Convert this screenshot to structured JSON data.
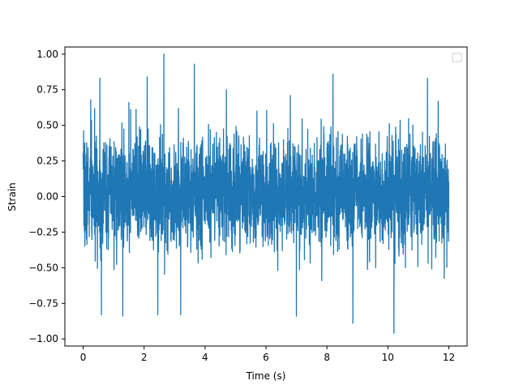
{
  "chart_data": {
    "type": "line",
    "title": "",
    "xlabel": "Time (s)",
    "ylabel": "Strain",
    "xlim": [
      -0.6,
      12.6
    ],
    "ylim": [
      -1.05,
      1.05
    ],
    "xticks": [
      0,
      2,
      4,
      6,
      8,
      10,
      12
    ],
    "xtick_labels": [
      "0",
      "2",
      "4",
      "6",
      "8",
      "10",
      "12"
    ],
    "yticks": [
      -1.0,
      -0.75,
      -0.5,
      -0.25,
      0.0,
      0.25,
      0.5,
      0.75,
      1.0
    ],
    "ytick_labels": [
      "−1.00",
      "−0.75",
      "−0.50",
      "−0.25",
      "0.00",
      "0.25",
      "0.50",
      "0.75",
      "1.00"
    ],
    "grid": false,
    "legend": {
      "placement": "top-right",
      "entries": []
    },
    "series": [
      {
        "x_range": [
          0,
          12
        ],
        "typical_range": [
          -0.45,
          0.5
        ],
        "peak_values": [
          {
            "x": 0.25,
            "y": 0.68
          },
          {
            "x": 0.55,
            "y": 0.83
          },
          {
            "x": 0.6,
            "y": -0.83
          },
          {
            "x": 1.3,
            "y": -0.84
          },
          {
            "x": 1.5,
            "y": 0.66
          },
          {
            "x": 2.1,
            "y": 0.84
          },
          {
            "x": 2.45,
            "y": -0.83
          },
          {
            "x": 2.65,
            "y": 1.0
          },
          {
            "x": 3.2,
            "y": -0.83
          },
          {
            "x": 3.65,
            "y": 0.93
          },
          {
            "x": 4.7,
            "y": 0.75
          },
          {
            "x": 5.7,
            "y": 0.6
          },
          {
            "x": 6.8,
            "y": 0.71
          },
          {
            "x": 7.0,
            "y": -0.84
          },
          {
            "x": 8.2,
            "y": 0.86
          },
          {
            "x": 8.85,
            "y": -0.89
          },
          {
            "x": 10.2,
            "y": -0.96
          },
          {
            "x": 11.3,
            "y": 0.83
          },
          {
            "x": 11.65,
            "y": 0.67
          }
        ],
        "color": "#1f77b4"
      }
    ]
  }
}
